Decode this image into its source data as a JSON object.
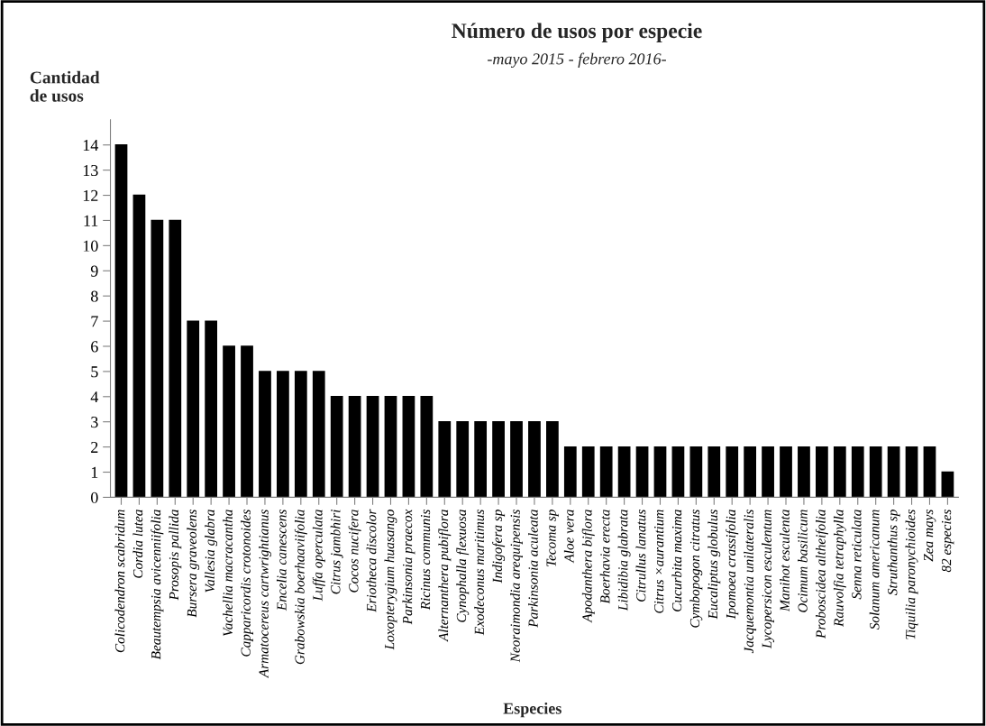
{
  "chart_data": {
    "type": "bar",
    "title": "Número de usos por especie",
    "subtitle": "-mayo 2015 - febrero 2016-",
    "xlabel": "Especies",
    "ylabel": "Cantidad\nde usos",
    "categories": [
      "Colicodendron scabridum",
      "Cordia lutea",
      "Beautempsia avicenniifolia",
      "Prosopis pallida",
      "Bursera graveolens",
      "Vallesia glabra",
      "Vachellia macracantha",
      "Capparicordis crotonoides",
      "Armatocereus cartwrightianus",
      "Encelia canescens",
      "Grabowskia boerhaaviifolia",
      "Luffa operculata",
      "Citrus jambhiri",
      "Cocos nucifera",
      "Eriotheca discolor",
      "Loxopterygium huasango",
      "Parkinsonia praecox",
      "Ricinus communis",
      "Alternanthera pubiflora",
      "Cynophalla flexuosa",
      "Exodeconus maritimus",
      "Indigofera sp",
      "Neoraimondia arequipensis",
      "Parkinsonia aculeata",
      "Tecoma sp",
      "Aloe vera",
      "Apodanthera biflora",
      "Boerhavia erecta",
      "Libidibia glabrata",
      "Citrullus lanatus",
      "Citrus ×aurantium",
      "Cucurbita maxima",
      "Cymbopogon citratus",
      "Eucaliptus globulus",
      "Ipomoea crassifolia",
      "Jacquemontia unilateralis",
      "Lycopersicon esculentum",
      "Manihot esculenta",
      "Ocimum basilicum",
      "Proboscidea altheifolia",
      "Rauvolfia tetraphylla",
      "Senna reticulata",
      "Solanum americanum",
      "Struthanthus sp",
      "Tiquilia paronychioides",
      "Zea mays",
      "82 especies"
    ],
    "values": [
      14,
      12,
      11,
      11,
      7,
      7,
      6,
      6,
      5,
      5,
      5,
      5,
      4,
      4,
      4,
      4,
      4,
      4,
      3,
      3,
      3,
      3,
      3,
      3,
      3,
      2,
      2,
      2,
      2,
      2,
      2,
      2,
      2,
      2,
      2,
      2,
      2,
      2,
      2,
      2,
      2,
      2,
      2,
      2,
      2,
      2,
      1
    ],
    "color": "#000000",
    "ylim": [
      0,
      15
    ],
    "yticks": [
      0,
      1,
      2,
      3,
      4,
      5,
      6,
      7,
      8,
      9,
      10,
      11,
      12,
      13,
      14
    ],
    "grid": false,
    "legend": false
  }
}
